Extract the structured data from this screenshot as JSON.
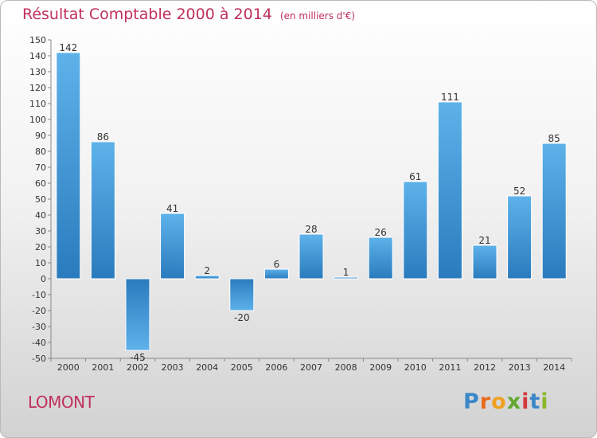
{
  "header": {
    "title": "Résultat Comptable 2000 à 2014",
    "unit": "(en milliers d'€)"
  },
  "commune": "LOMONT",
  "logo": {
    "letters": [
      "P",
      "r",
      "o",
      "x",
      "i",
      "t",
      "i"
    ]
  },
  "colors": {
    "title": "#c0305a",
    "bar_light": "#5eb2ea",
    "bar_dark": "#2a7bbd",
    "logo": [
      "#3a88c8",
      "#e86a1c",
      "#f0a020",
      "#62a830",
      "#d23a3a",
      "#3a88c8",
      "#8ab82a"
    ]
  },
  "chart_data": {
    "type": "bar",
    "title": "Résultat Comptable 2000 à 2014",
    "xlabel": "",
    "ylabel": "",
    "categories": [
      "2000",
      "2001",
      "2002",
      "2003",
      "2004",
      "2005",
      "2006",
      "2007",
      "2008",
      "2009",
      "2010",
      "2011",
      "2012",
      "2013",
      "2014"
    ],
    "values": [
      142,
      86,
      -45,
      41,
      2,
      -20,
      6,
      28,
      1,
      26,
      61,
      111,
      21,
      52,
      85
    ],
    "value_labels": [
      "142",
      "86",
      "-45",
      "41",
      "2",
      "-20",
      "6",
      "28",
      "1",
      "26",
      "61",
      "111",
      "21",
      "52",
      "85"
    ],
    "ylim": [
      -50,
      150
    ],
    "yticks": [
      150,
      140,
      130,
      120,
      110,
      100,
      90,
      80,
      70,
      60,
      50,
      40,
      30,
      20,
      10,
      0,
      -10,
      -20,
      -30,
      -40,
      -50
    ],
    "grid": false,
    "legend": "none"
  }
}
